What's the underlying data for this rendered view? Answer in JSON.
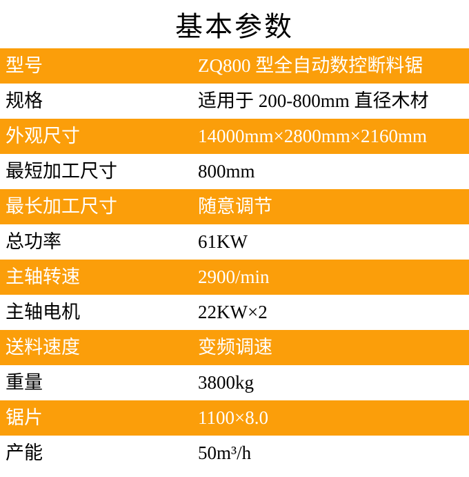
{
  "title": "基本参数",
  "colors": {
    "accent_orange": "#FB9E0A",
    "text_on_orange": "#FFFFFF",
    "text_dark": "#000000",
    "background": "#FFFFFF"
  },
  "table": {
    "rows": [
      {
        "label": "型号",
        "value": "ZQ800 型全自动数控断料锯"
      },
      {
        "label": "规格",
        "value": "适用于 200-800mm 直径木材"
      },
      {
        "label": "外观尺寸",
        "value": "14000mm×2800mm×2160mm"
      },
      {
        "label": "最短加工尺寸",
        "value": "800mm"
      },
      {
        "label": "最长加工尺寸",
        "value": "随意调节"
      },
      {
        "label": "总功率",
        "value": "61KW"
      },
      {
        "label": "主轴转速",
        "value": "2900/min"
      },
      {
        "label": "主轴电机",
        "value": "22KW×2"
      },
      {
        "label": "送料速度",
        "value": "变频调速"
      },
      {
        "label": "重量",
        "value": "3800kg"
      },
      {
        "label": "锯片",
        "value": "1100×8.0"
      },
      {
        "label": "产能",
        "value": "50m³/h"
      }
    ]
  }
}
